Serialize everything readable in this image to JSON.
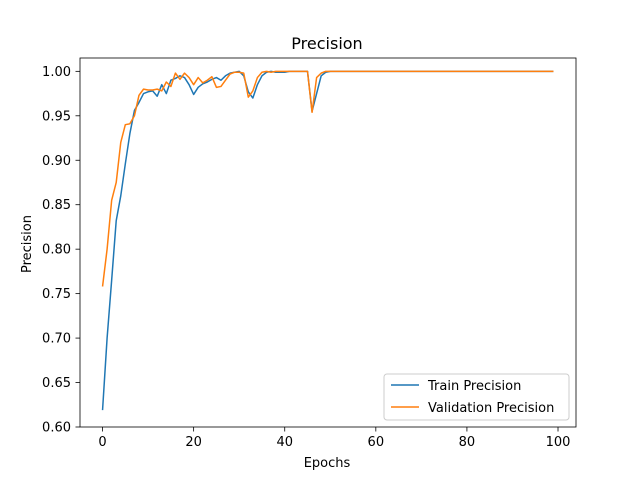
{
  "chart_data": {
    "type": "line",
    "title": "Precision",
    "xlabel": "Epochs",
    "ylabel": "Precision",
    "xlim": [
      -4.95,
      103.95
    ],
    "ylim": [
      0.6,
      1.015
    ],
    "xticks": [
      0,
      20,
      40,
      60,
      80,
      100
    ],
    "xtick_labels": [
      "0",
      "20",
      "40",
      "60",
      "80",
      "100"
    ],
    "yticks": [
      0.6,
      0.65,
      0.7,
      0.75,
      0.8,
      0.85,
      0.9,
      0.95,
      1.0
    ],
    "ytick_labels": [
      "0.60",
      "0.65",
      "0.70",
      "0.75",
      "0.80",
      "0.85",
      "0.90",
      "0.95",
      "1.00"
    ],
    "grid": false,
    "legend_position": "lower-right",
    "series": [
      {
        "name": "Train Precision",
        "color": "#1f77b4",
        "x": [
          0,
          1,
          2,
          3,
          4,
          5,
          6,
          7,
          8,
          9,
          10,
          11,
          12,
          13,
          14,
          15,
          16,
          17,
          18,
          19,
          20,
          21,
          22,
          23,
          24,
          25,
          26,
          27,
          28,
          29,
          30,
          31,
          32,
          33,
          34,
          35,
          36,
          37,
          38,
          39,
          40,
          41,
          42,
          43,
          44,
          45,
          46,
          47,
          48,
          49,
          50,
          51,
          52,
          53,
          54,
          55,
          56,
          57,
          58,
          59,
          60,
          61,
          62,
          63,
          64,
          65,
          66,
          67,
          68,
          69,
          70,
          71,
          72,
          73,
          74,
          75,
          76,
          77,
          78,
          79,
          80,
          81,
          82,
          83,
          84,
          85,
          86,
          87,
          88,
          89,
          90,
          91,
          92,
          93,
          94,
          95,
          96,
          97,
          98,
          99
        ],
        "y": [
          0.619,
          0.7,
          0.765,
          0.832,
          0.86,
          0.896,
          0.93,
          0.956,
          0.965,
          0.975,
          0.977,
          0.978,
          0.972,
          0.985,
          0.975,
          0.99,
          0.992,
          0.995,
          0.993,
          0.985,
          0.974,
          0.982,
          0.986,
          0.988,
          0.991,
          0.993,
          0.99,
          0.995,
          0.998,
          0.999,
          1.0,
          0.995,
          0.977,
          0.97,
          0.985,
          0.995,
          0.999,
          1.0,
          0.999,
          0.999,
          0.999,
          1.0,
          1.0,
          1.0,
          1.0,
          1.0,
          0.955,
          0.975,
          0.995,
          0.999,
          1.0,
          1.0,
          1.0,
          1.0,
          1.0,
          1.0,
          1.0,
          1.0,
          1.0,
          1.0,
          1.0,
          1.0,
          1.0,
          1.0,
          1.0,
          1.0,
          1.0,
          1.0,
          1.0,
          1.0,
          1.0,
          1.0,
          1.0,
          1.0,
          1.0,
          1.0,
          1.0,
          1.0,
          1.0,
          1.0,
          1.0,
          1.0,
          1.0,
          1.0,
          1.0,
          1.0,
          1.0,
          1.0,
          1.0,
          1.0,
          1.0,
          1.0,
          1.0,
          1.0,
          1.0,
          1.0,
          1.0,
          1.0,
          1.0,
          1.0
        ]
      },
      {
        "name": "Validation Precision",
        "color": "#ff7f0e",
        "x": [
          0,
          1,
          2,
          3,
          4,
          5,
          6,
          7,
          8,
          9,
          10,
          11,
          12,
          13,
          14,
          15,
          16,
          17,
          18,
          19,
          20,
          21,
          22,
          23,
          24,
          25,
          26,
          27,
          28,
          29,
          30,
          31,
          32,
          33,
          34,
          35,
          36,
          37,
          38,
          39,
          40,
          41,
          42,
          43,
          44,
          45,
          46,
          47,
          48,
          49,
          50,
          51,
          52,
          53,
          54,
          55,
          56,
          57,
          58,
          59,
          60,
          61,
          62,
          63,
          64,
          65,
          66,
          67,
          68,
          69,
          70,
          71,
          72,
          73,
          74,
          75,
          76,
          77,
          78,
          79,
          80,
          81,
          82,
          83,
          84,
          85,
          86,
          87,
          88,
          89,
          90,
          91,
          92,
          93,
          94,
          95,
          96,
          97,
          98,
          99
        ],
        "y": [
          0.758,
          0.8,
          0.855,
          0.875,
          0.92,
          0.94,
          0.941,
          0.95,
          0.973,
          0.98,
          0.979,
          0.979,
          0.98,
          0.978,
          0.988,
          0.983,
          0.998,
          0.991,
          0.998,
          0.993,
          0.985,
          0.993,
          0.987,
          0.99,
          0.994,
          0.982,
          0.983,
          0.99,
          0.997,
          0.999,
          0.999,
          0.998,
          0.971,
          0.978,
          0.993,
          0.999,
          1.0,
          0.999,
          1.0,
          1.0,
          1.0,
          1.0,
          1.0,
          1.0,
          1.0,
          1.0,
          0.954,
          0.993,
          0.998,
          1.0,
          1.0,
          1.0,
          1.0,
          1.0,
          1.0,
          1.0,
          1.0,
          1.0,
          1.0,
          1.0,
          1.0,
          1.0,
          1.0,
          1.0,
          1.0,
          1.0,
          1.0,
          1.0,
          1.0,
          1.0,
          1.0,
          1.0,
          1.0,
          1.0,
          1.0,
          1.0,
          1.0,
          1.0,
          1.0,
          1.0,
          1.0,
          1.0,
          1.0,
          1.0,
          1.0,
          1.0,
          1.0,
          1.0,
          1.0,
          1.0,
          1.0,
          1.0,
          1.0,
          1.0,
          1.0,
          1.0,
          1.0,
          1.0,
          1.0,
          1.0
        ]
      }
    ]
  }
}
